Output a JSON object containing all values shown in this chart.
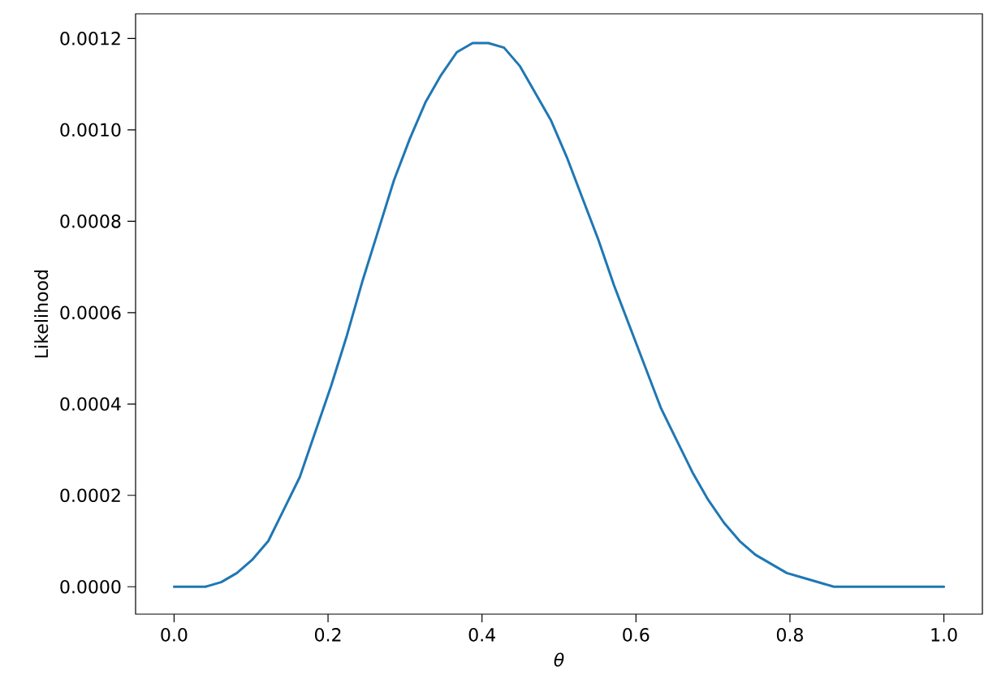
{
  "chart_data": {
    "type": "line",
    "xlabel": "θ",
    "ylabel": "Likelihood",
    "x": [
      0,
      0.0204,
      0.0408,
      0.0612,
      0.0816,
      0.102,
      0.1224,
      0.1429,
      0.1633,
      0.1837,
      0.2041,
      0.2245,
      0.2449,
      0.2653,
      0.2857,
      0.3061,
      0.3265,
      0.3469,
      0.3673,
      0.3878,
      0.4082,
      0.4286,
      0.449,
      0.4694,
      0.4898,
      0.5102,
      0.5306,
      0.551,
      0.5714,
      0.5918,
      0.6122,
      0.6327,
      0.6531,
      0.6735,
      0.6939,
      0.7143,
      0.7347,
      0.7551,
      0.7755,
      0.7959,
      0.8163,
      0.8367,
      0.8571,
      0.8776,
      0.898,
      0.9184,
      0.9388,
      0.9592,
      0.9796,
      1
    ],
    "series": [
      {
        "color": "#1f77b4",
        "values": [
          0,
          0,
          0,
          1e-05,
          3e-05,
          6e-05,
          0.0001,
          0.00017,
          0.00024,
          0.00034,
          0.00044,
          0.00055,
          0.00067,
          0.00078,
          0.00089,
          0.00098,
          0.00106,
          0.00112,
          0.00117,
          0.00119,
          0.00119,
          0.00118,
          0.00114,
          0.00108,
          0.00102,
          0.00094,
          0.00085,
          0.00076,
          0.00066,
          0.00057,
          0.00048,
          0.00039,
          0.00032,
          0.00025,
          0.00019,
          0.00014,
          0.0001,
          7e-05,
          5e-05,
          3e-05,
          2e-05,
          1e-05,
          0,
          0,
          0,
          0,
          0,
          0,
          0,
          0
        ]
      }
    ],
    "xlim": [
      -0.05,
      1.05
    ],
    "ylim": [
      -6e-05,
      0.001254
    ],
    "xticks": [
      {
        "value": 0,
        "label": "0.0"
      },
      {
        "value": 0.2,
        "label": "0.2"
      },
      {
        "value": 0.4,
        "label": "0.4"
      },
      {
        "value": 0.6,
        "label": "0.6"
      },
      {
        "value": 0.8,
        "label": "0.8"
      },
      {
        "value": 1,
        "label": "1.0"
      }
    ],
    "yticks": [
      {
        "value": 0,
        "label": "0.0000"
      },
      {
        "value": 0.0002,
        "label": "0.0002"
      },
      {
        "value": 0.0004,
        "label": "0.0004"
      },
      {
        "value": 0.0006,
        "label": "0.0006"
      },
      {
        "value": 0.0008,
        "label": "0.0008"
      },
      {
        "value": 0.001,
        "label": "0.0010"
      },
      {
        "value": 0.0012,
        "label": "0.0012"
      }
    ],
    "marker": "none",
    "line_style": "solid"
  }
}
